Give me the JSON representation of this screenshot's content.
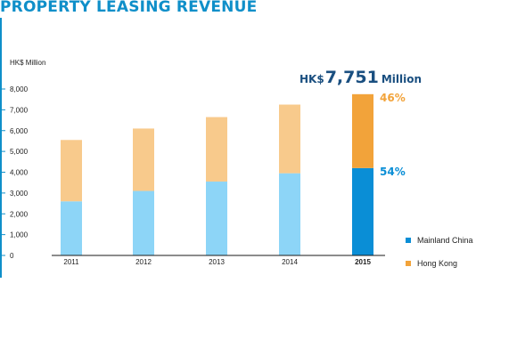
{
  "title": "PROPERTY LEASING REVENUE",
  "unit_label": "HK$ Million",
  "headline": {
    "prefix": "HK$",
    "value": "7,751",
    "suffix": "Million"
  },
  "share_labels": {
    "hong_kong": "46%",
    "mainland_china": "54%"
  },
  "legend": [
    {
      "label": "Mainland China",
      "color": "#0a8ed6"
    },
    {
      "label": "Hong Kong",
      "color": "#f2a33a"
    }
  ],
  "colors": {
    "title": "#0f8fc9",
    "headline": "#1a4f80",
    "mainland_light": "#8dd5f7",
    "hongkong_light": "#f8ca8c",
    "mainland_dark": "#0a8ed6",
    "hongkong_dark": "#f2a33a",
    "axis": "#0f8fc9"
  },
  "chart_data": {
    "type": "bar",
    "stacked": true,
    "title": "PROPERTY LEASING REVENUE",
    "ylabel": "HK$ Million",
    "xlabel": "",
    "categories": [
      "2011",
      "2012",
      "2013",
      "2014",
      "2015"
    ],
    "highlight_category": "2015",
    "series": [
      {
        "name": "Mainland China",
        "values": [
          2600,
          3100,
          3550,
          3950,
          4200
        ]
      },
      {
        "name": "Hong Kong",
        "values": [
          2950,
          3000,
          3100,
          3300,
          3551
        ]
      }
    ],
    "ylim": [
      0,
      8000
    ],
    "yticks": [
      "0",
      "1,000",
      "2,000",
      "3,000",
      "4,000",
      "5,000",
      "6,000",
      "7,000",
      "8,000"
    ],
    "grid": false,
    "legend_position": "bottom-right"
  }
}
